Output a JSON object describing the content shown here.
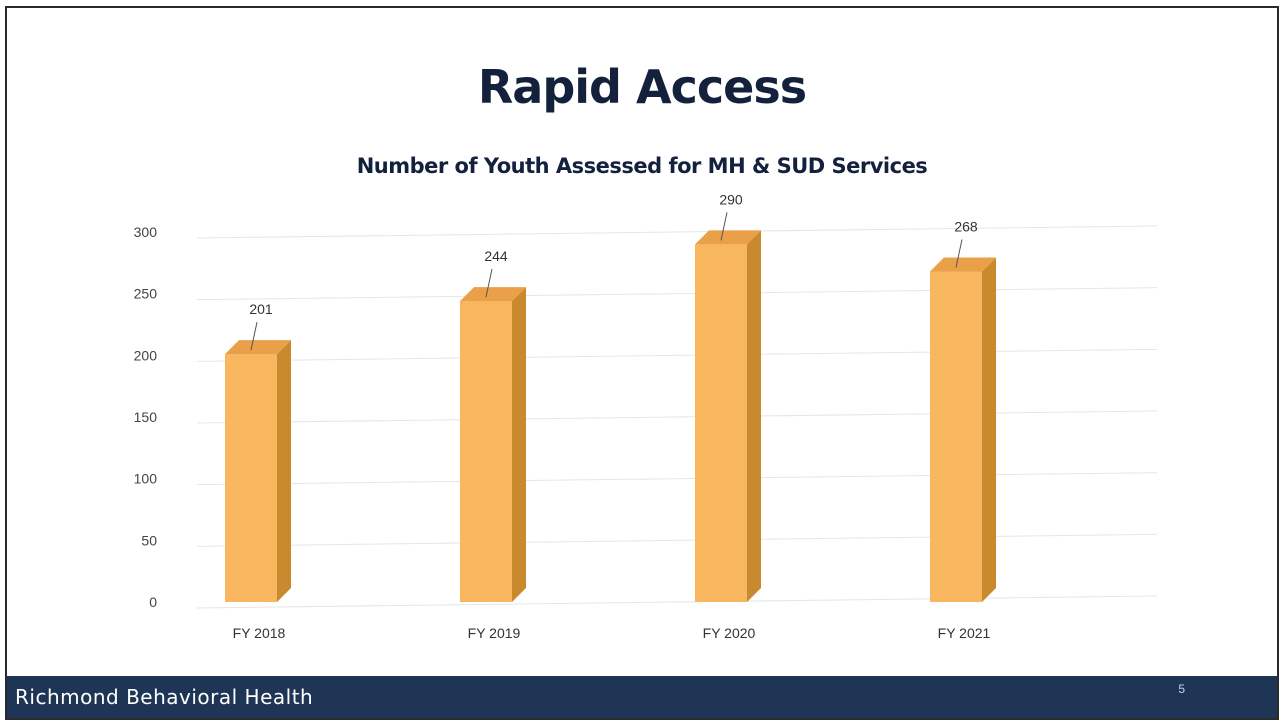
{
  "slide": {
    "title": "Rapid Access",
    "footer_org": "Richmond Behavioral Health",
    "page_number": "5"
  },
  "colors": {
    "bar_front": "#F8B65F",
    "bar_side": "#C98A2E",
    "bar_top": "#E9A048",
    "footer_bg": "#1F3556",
    "title": "#14213D"
  },
  "chart_data": {
    "type": "bar",
    "title": "Number of Youth Assessed for MH & SUD Services",
    "categories": [
      "FY 2018",
      "FY 2019",
      "FY 2020",
      "FY 2021"
    ],
    "values": [
      201,
      244,
      290,
      268
    ],
    "data_labels": [
      "201",
      "244",
      "290",
      "268"
    ],
    "ylim": [
      0,
      300
    ],
    "yticks": [
      0,
      50,
      100,
      150,
      200,
      250,
      300
    ],
    "xlabel": "",
    "ylabel": "",
    "grid": true,
    "legend": "none",
    "style": "3d-columns"
  }
}
